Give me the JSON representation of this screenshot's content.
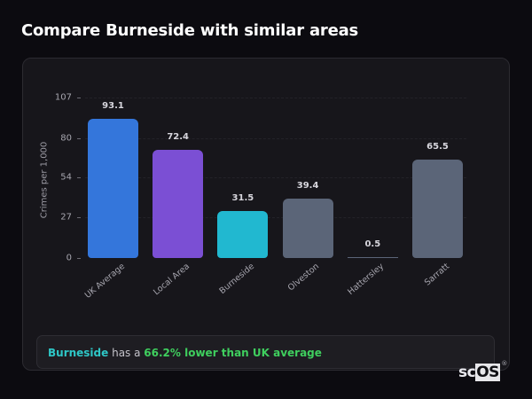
{
  "header": {
    "title": "Compare Burneside with similar areas"
  },
  "chart_data": {
    "type": "bar",
    "title": "Compare Burneside with similar areas",
    "xlabel": "",
    "ylabel": "Crimes per 1,000",
    "ylim": [
      0,
      107
    ],
    "yticks": [
      0,
      27,
      54,
      80,
      107
    ],
    "grid": true,
    "categories": [
      "UK Average",
      "Local Area",
      "Burneside",
      "Olveston",
      "Hattersley",
      "Sarratt"
    ],
    "values": [
      93.1,
      72.4,
      31.5,
      39.4,
      0.5,
      65.5
    ],
    "value_labels": [
      "93.1",
      "72.4",
      "31.5",
      "39.4",
      "0.5",
      "65.5"
    ],
    "colors": [
      "#3476db",
      "#7b4fd4",
      "#21b8d0",
      "#5b6578",
      "#5b6578",
      "#5b6578"
    ],
    "legend": null
  },
  "summary": {
    "area": "Burneside",
    "middle": " has a ",
    "difference": "66.2% lower than UK average"
  },
  "branding": {
    "logo_sc": "sc",
    "logo_os": "OS",
    "reg": "®"
  }
}
